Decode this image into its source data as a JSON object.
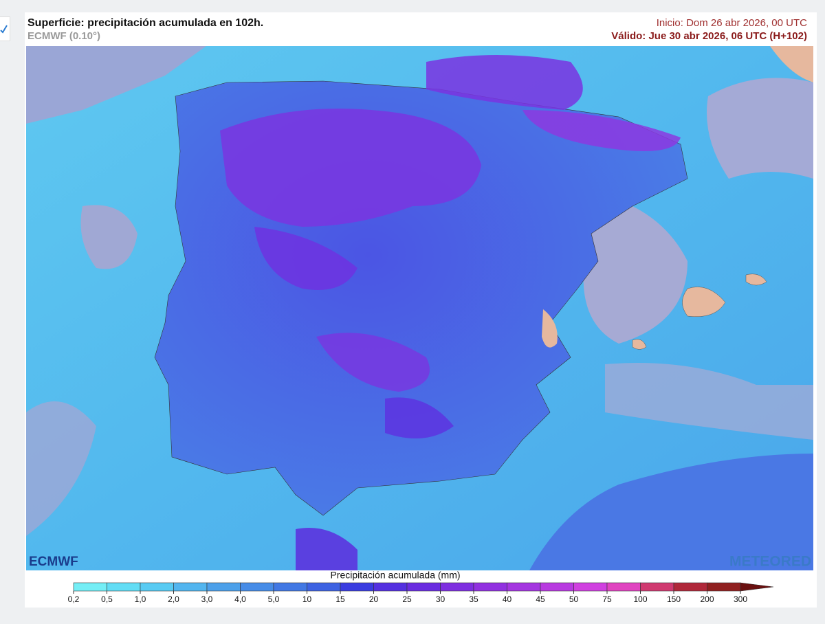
{
  "header": {
    "title": "Superficie: precipitación acumulada en 102h.",
    "subtitle": "ECMWF (0.10°)",
    "init": "Inicio: Dom 26 abr 2026, 00 UTC",
    "valid": "Válido: Jue 30 abr 2026, 06 UTC (H+102)"
  },
  "map": {
    "logo_left": "ECMWF",
    "logo_right": "METEORED"
  },
  "legend": {
    "title": "Precipitación acumulada (mm)",
    "labels": [
      "0,2",
      "0,5",
      "1,0",
      "2,0",
      "3,0",
      "4,0",
      "5,0",
      "10",
      "15",
      "20",
      "25",
      "30",
      "35",
      "40",
      "45",
      "50",
      "75",
      "100",
      "150",
      "200",
      "300"
    ],
    "colors": [
      "#74eef6",
      "#62ddf5",
      "#58cbf3",
      "#52b5ef",
      "#4ca0ea",
      "#478ce7",
      "#4278e4",
      "#3d62e2",
      "#3a3ce0",
      "#5430e0",
      "#6a2ce0",
      "#7e2fe0",
      "#9131e0",
      "#a436e0",
      "#b83ae0",
      "#d040e0",
      "#e044c0",
      "#d03a70",
      "#b0283a",
      "#902020",
      "#6a1010"
    ]
  }
}
